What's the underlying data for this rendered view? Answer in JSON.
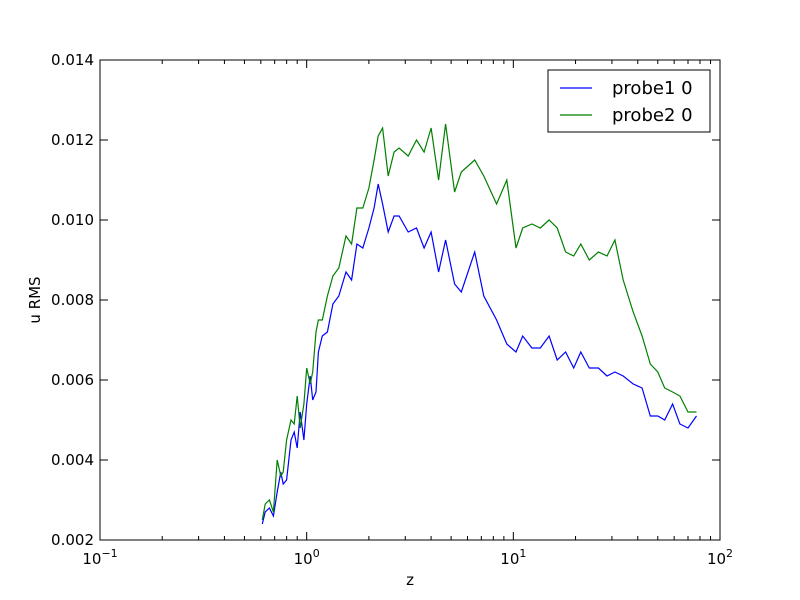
{
  "chart_data": {
    "type": "line",
    "xlabel": "z",
    "ylabel": "u RMS",
    "xscale": "log",
    "xlim": [
      0.1,
      100
    ],
    "ylim": [
      0.002,
      0.014
    ],
    "grid": false,
    "legend_position": "top-right",
    "x_ticks": [
      {
        "value": 0.1,
        "base": "10",
        "exp": "−1"
      },
      {
        "value": 1,
        "base": "10",
        "exp": "0"
      },
      {
        "value": 10,
        "base": "10",
        "exp": "1"
      },
      {
        "value": 100,
        "base": "10",
        "exp": "2"
      }
    ],
    "y_ticks": [
      {
        "value": 0.002,
        "label": "0.002"
      },
      {
        "value": 0.004,
        "label": "0.004"
      },
      {
        "value": 0.006,
        "label": "0.006"
      },
      {
        "value": 0.008,
        "label": "0.008"
      },
      {
        "value": 0.01,
        "label": "0.010"
      },
      {
        "value": 0.012,
        "label": "0.012"
      },
      {
        "value": 0.014,
        "label": "0.014"
      }
    ],
    "series": [
      {
        "name": "probe1 0",
        "color": "#0000ff",
        "x": [
          0.61,
          0.63,
          0.66,
          0.69,
          0.72,
          0.75,
          0.77,
          0.8,
          0.84,
          0.87,
          0.9,
          0.93,
          0.97,
          1.0,
          1.04,
          1.07,
          1.11,
          1.14,
          1.19,
          1.26,
          1.34,
          1.43,
          1.55,
          1.65,
          1.75,
          1.87,
          2.0,
          2.12,
          2.22,
          2.33,
          2.48,
          2.65,
          2.8,
          3.1,
          3.4,
          3.7,
          4.0,
          4.35,
          4.7,
          5.2,
          5.6,
          6.5,
          7.2,
          8.3,
          9.3,
          10.3,
          11.1,
          12.3,
          13.5,
          14.9,
          16.3,
          17.9,
          19.6,
          21.2,
          23.3,
          25.8,
          28.4,
          31.0,
          34.0,
          38.0,
          42.0,
          46.0,
          50.0,
          54.0,
          59.0,
          64.0,
          70.0,
          77.0
        ],
        "y": [
          0.0024,
          0.0027,
          0.0028,
          0.0026,
          0.0032,
          0.0037,
          0.0034,
          0.0035,
          0.0045,
          0.0047,
          0.0043,
          0.0052,
          0.0045,
          0.0054,
          0.0061,
          0.0055,
          0.0057,
          0.0067,
          0.0071,
          0.0072,
          0.0079,
          0.0081,
          0.0087,
          0.0085,
          0.0094,
          0.0093,
          0.0098,
          0.0103,
          0.0109,
          0.0104,
          0.0097,
          0.0101,
          0.0101,
          0.0097,
          0.0098,
          0.0093,
          0.0097,
          0.0087,
          0.0095,
          0.0084,
          0.0082,
          0.0092,
          0.0081,
          0.0075,
          0.0069,
          0.0067,
          0.0071,
          0.0068,
          0.0068,
          0.0071,
          0.0065,
          0.0067,
          0.0063,
          0.0067,
          0.0063,
          0.0063,
          0.0061,
          0.0062,
          0.0061,
          0.0059,
          0.0058,
          0.0051,
          0.0051,
          0.005,
          0.0054,
          0.0049,
          0.0048,
          0.0051
        ]
      },
      {
        "name": "probe2 0",
        "color": "#008000",
        "x": [
          0.61,
          0.63,
          0.66,
          0.69,
          0.72,
          0.75,
          0.77,
          0.8,
          0.84,
          0.87,
          0.9,
          0.93,
          0.97,
          1.0,
          1.04,
          1.07,
          1.11,
          1.14,
          1.19,
          1.26,
          1.34,
          1.43,
          1.55,
          1.65,
          1.75,
          1.87,
          2.0,
          2.12,
          2.22,
          2.33,
          2.48,
          2.65,
          2.8,
          3.1,
          3.4,
          3.7,
          4.0,
          4.35,
          4.7,
          5.2,
          5.6,
          6.5,
          7.2,
          8.3,
          9.3,
          10.3,
          11.1,
          12.3,
          13.5,
          14.9,
          16.3,
          17.9,
          19.6,
          21.2,
          23.3,
          25.8,
          28.4,
          31.0,
          34.0,
          38.0,
          42.0,
          46.0,
          50.0,
          54.0,
          59.0,
          64.0,
          70.0,
          77.0
        ],
        "y": [
          0.0025,
          0.0029,
          0.003,
          0.0027,
          0.004,
          0.0036,
          0.0037,
          0.0045,
          0.005,
          0.0049,
          0.0056,
          0.0048,
          0.0054,
          0.0063,
          0.0059,
          0.0062,
          0.0072,
          0.0075,
          0.0075,
          0.0081,
          0.0086,
          0.0088,
          0.0096,
          0.0094,
          0.0103,
          0.0103,
          0.0108,
          0.0115,
          0.0121,
          0.0123,
          0.0111,
          0.0117,
          0.0118,
          0.0116,
          0.012,
          0.0117,
          0.0123,
          0.011,
          0.0124,
          0.0107,
          0.0112,
          0.0115,
          0.0111,
          0.0104,
          0.011,
          0.0093,
          0.0098,
          0.0099,
          0.0098,
          0.01,
          0.0098,
          0.0092,
          0.0091,
          0.0094,
          0.009,
          0.0092,
          0.0091,
          0.0095,
          0.0085,
          0.0077,
          0.0071,
          0.0064,
          0.0062,
          0.0058,
          0.0057,
          0.0056,
          0.0052,
          0.0052
        ]
      }
    ]
  }
}
